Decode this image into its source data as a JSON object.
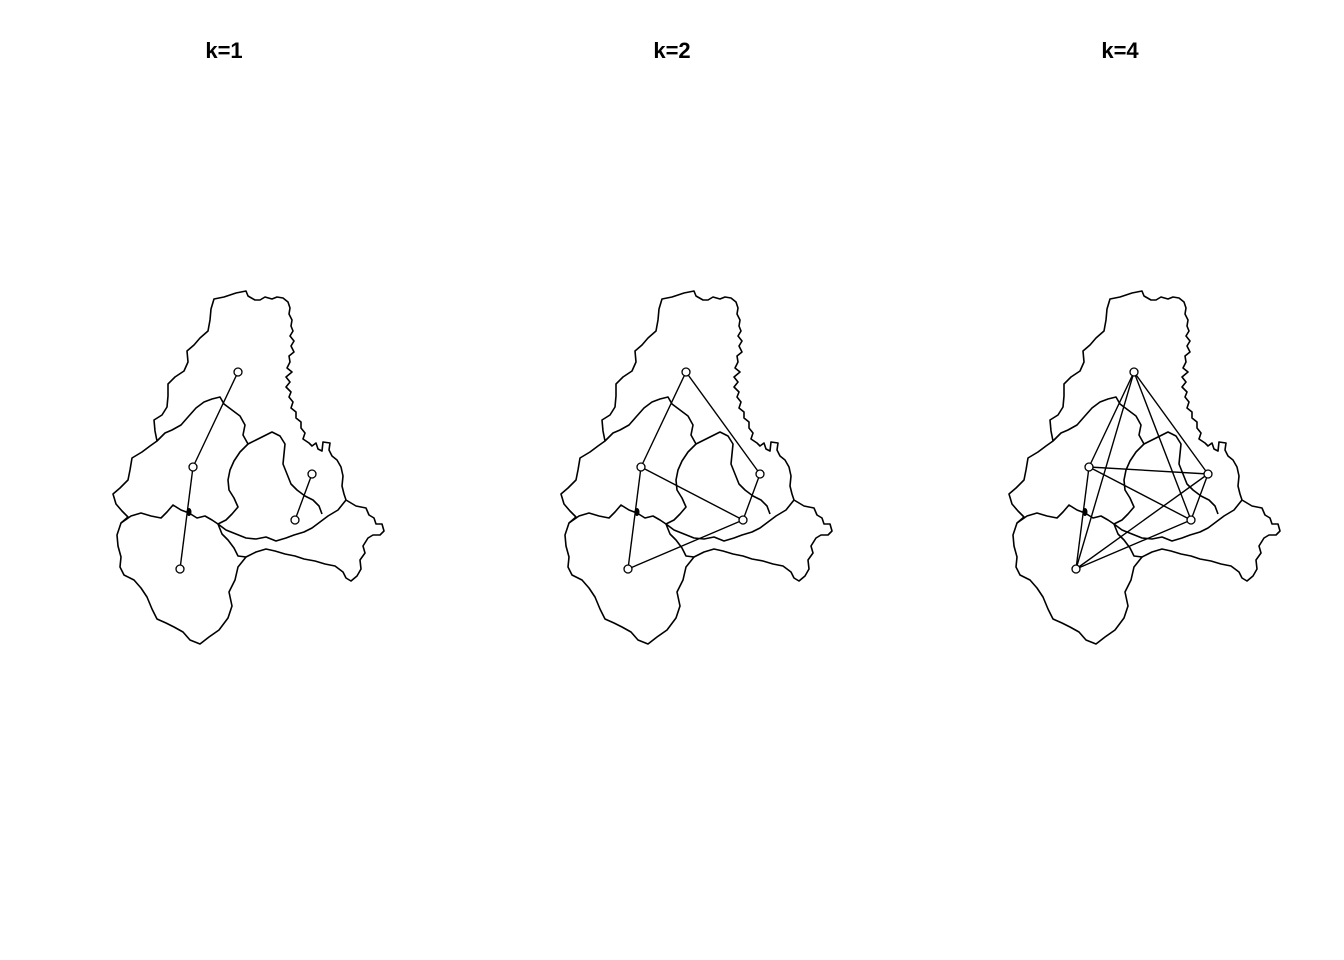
{
  "panels": [
    {
      "title": "k=1",
      "edges": [
        [
          0,
          1
        ],
        [
          1,
          4
        ],
        [
          2,
          3
        ]
      ]
    },
    {
      "title": "k=2",
      "edges": [
        [
          0,
          1
        ],
        [
          0,
          2
        ],
        [
          1,
          3
        ],
        [
          1,
          4
        ],
        [
          2,
          3
        ],
        [
          3,
          4
        ]
      ]
    },
    {
      "title": "k=4",
      "edges": [
        [
          0,
          1
        ],
        [
          0,
          2
        ],
        [
          0,
          3
        ],
        [
          0,
          4
        ],
        [
          1,
          2
        ],
        [
          1,
          3
        ],
        [
          1,
          4
        ],
        [
          2,
          3
        ],
        [
          2,
          4
        ],
        [
          3,
          4
        ]
      ]
    }
  ],
  "style": {
    "line_color": "#000000",
    "background": "#ffffff"
  }
}
